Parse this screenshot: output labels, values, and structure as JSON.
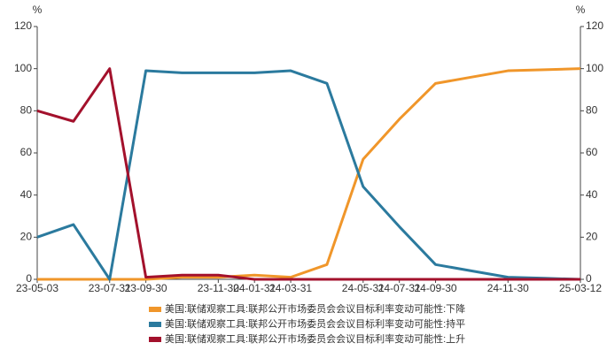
{
  "chart_data": {
    "type": "line",
    "y_unit": "%",
    "y2_unit": "%",
    "categories": [
      "23-05-03",
      null,
      "23-07-31",
      "23-09-30",
      null,
      "23-11-30",
      "24-01-31",
      "24-03-31",
      null,
      "24-05-31",
      "24-07-31",
      "24-09-30",
      null,
      "24-11-30",
      null,
      "25-03-12"
    ],
    "series": [
      {
        "name": "美国:联储观察工具:联邦公开市场委员会会议目标利率变动可能性:下降",
        "color": "#f0962a",
        "values": [
          0,
          0,
          0,
          0,
          1,
          1,
          2,
          1,
          7,
          57,
          76,
          93,
          96,
          99,
          99.5,
          100
        ]
      },
      {
        "name": "美国:联储观察工具:联邦公开市场委员会会议目标利率变动可能性:持平",
        "color": "#2b7a9e",
        "values": [
          20,
          26,
          0,
          99,
          98,
          98,
          98,
          99,
          93,
          44,
          25,
          7,
          4,
          1,
          0.5,
          0
        ]
      },
      {
        "name": "美国:联储观察工具:联邦公开市场委员会会议目标利率变动可能性:上升",
        "color": "#a3112c",
        "values": [
          80,
          75,
          100,
          1,
          2,
          2,
          0,
          0,
          0,
          0,
          0,
          0,
          0,
          0,
          0,
          0
        ]
      }
    ],
    "ylim": [
      0,
      120
    ],
    "yticks": [
      0,
      20,
      40,
      60,
      80,
      100,
      120
    ],
    "y2lim": [
      0,
      120
    ],
    "y2ticks": [
      0,
      20,
      40,
      60,
      80,
      100,
      120
    ],
    "grid": false
  }
}
